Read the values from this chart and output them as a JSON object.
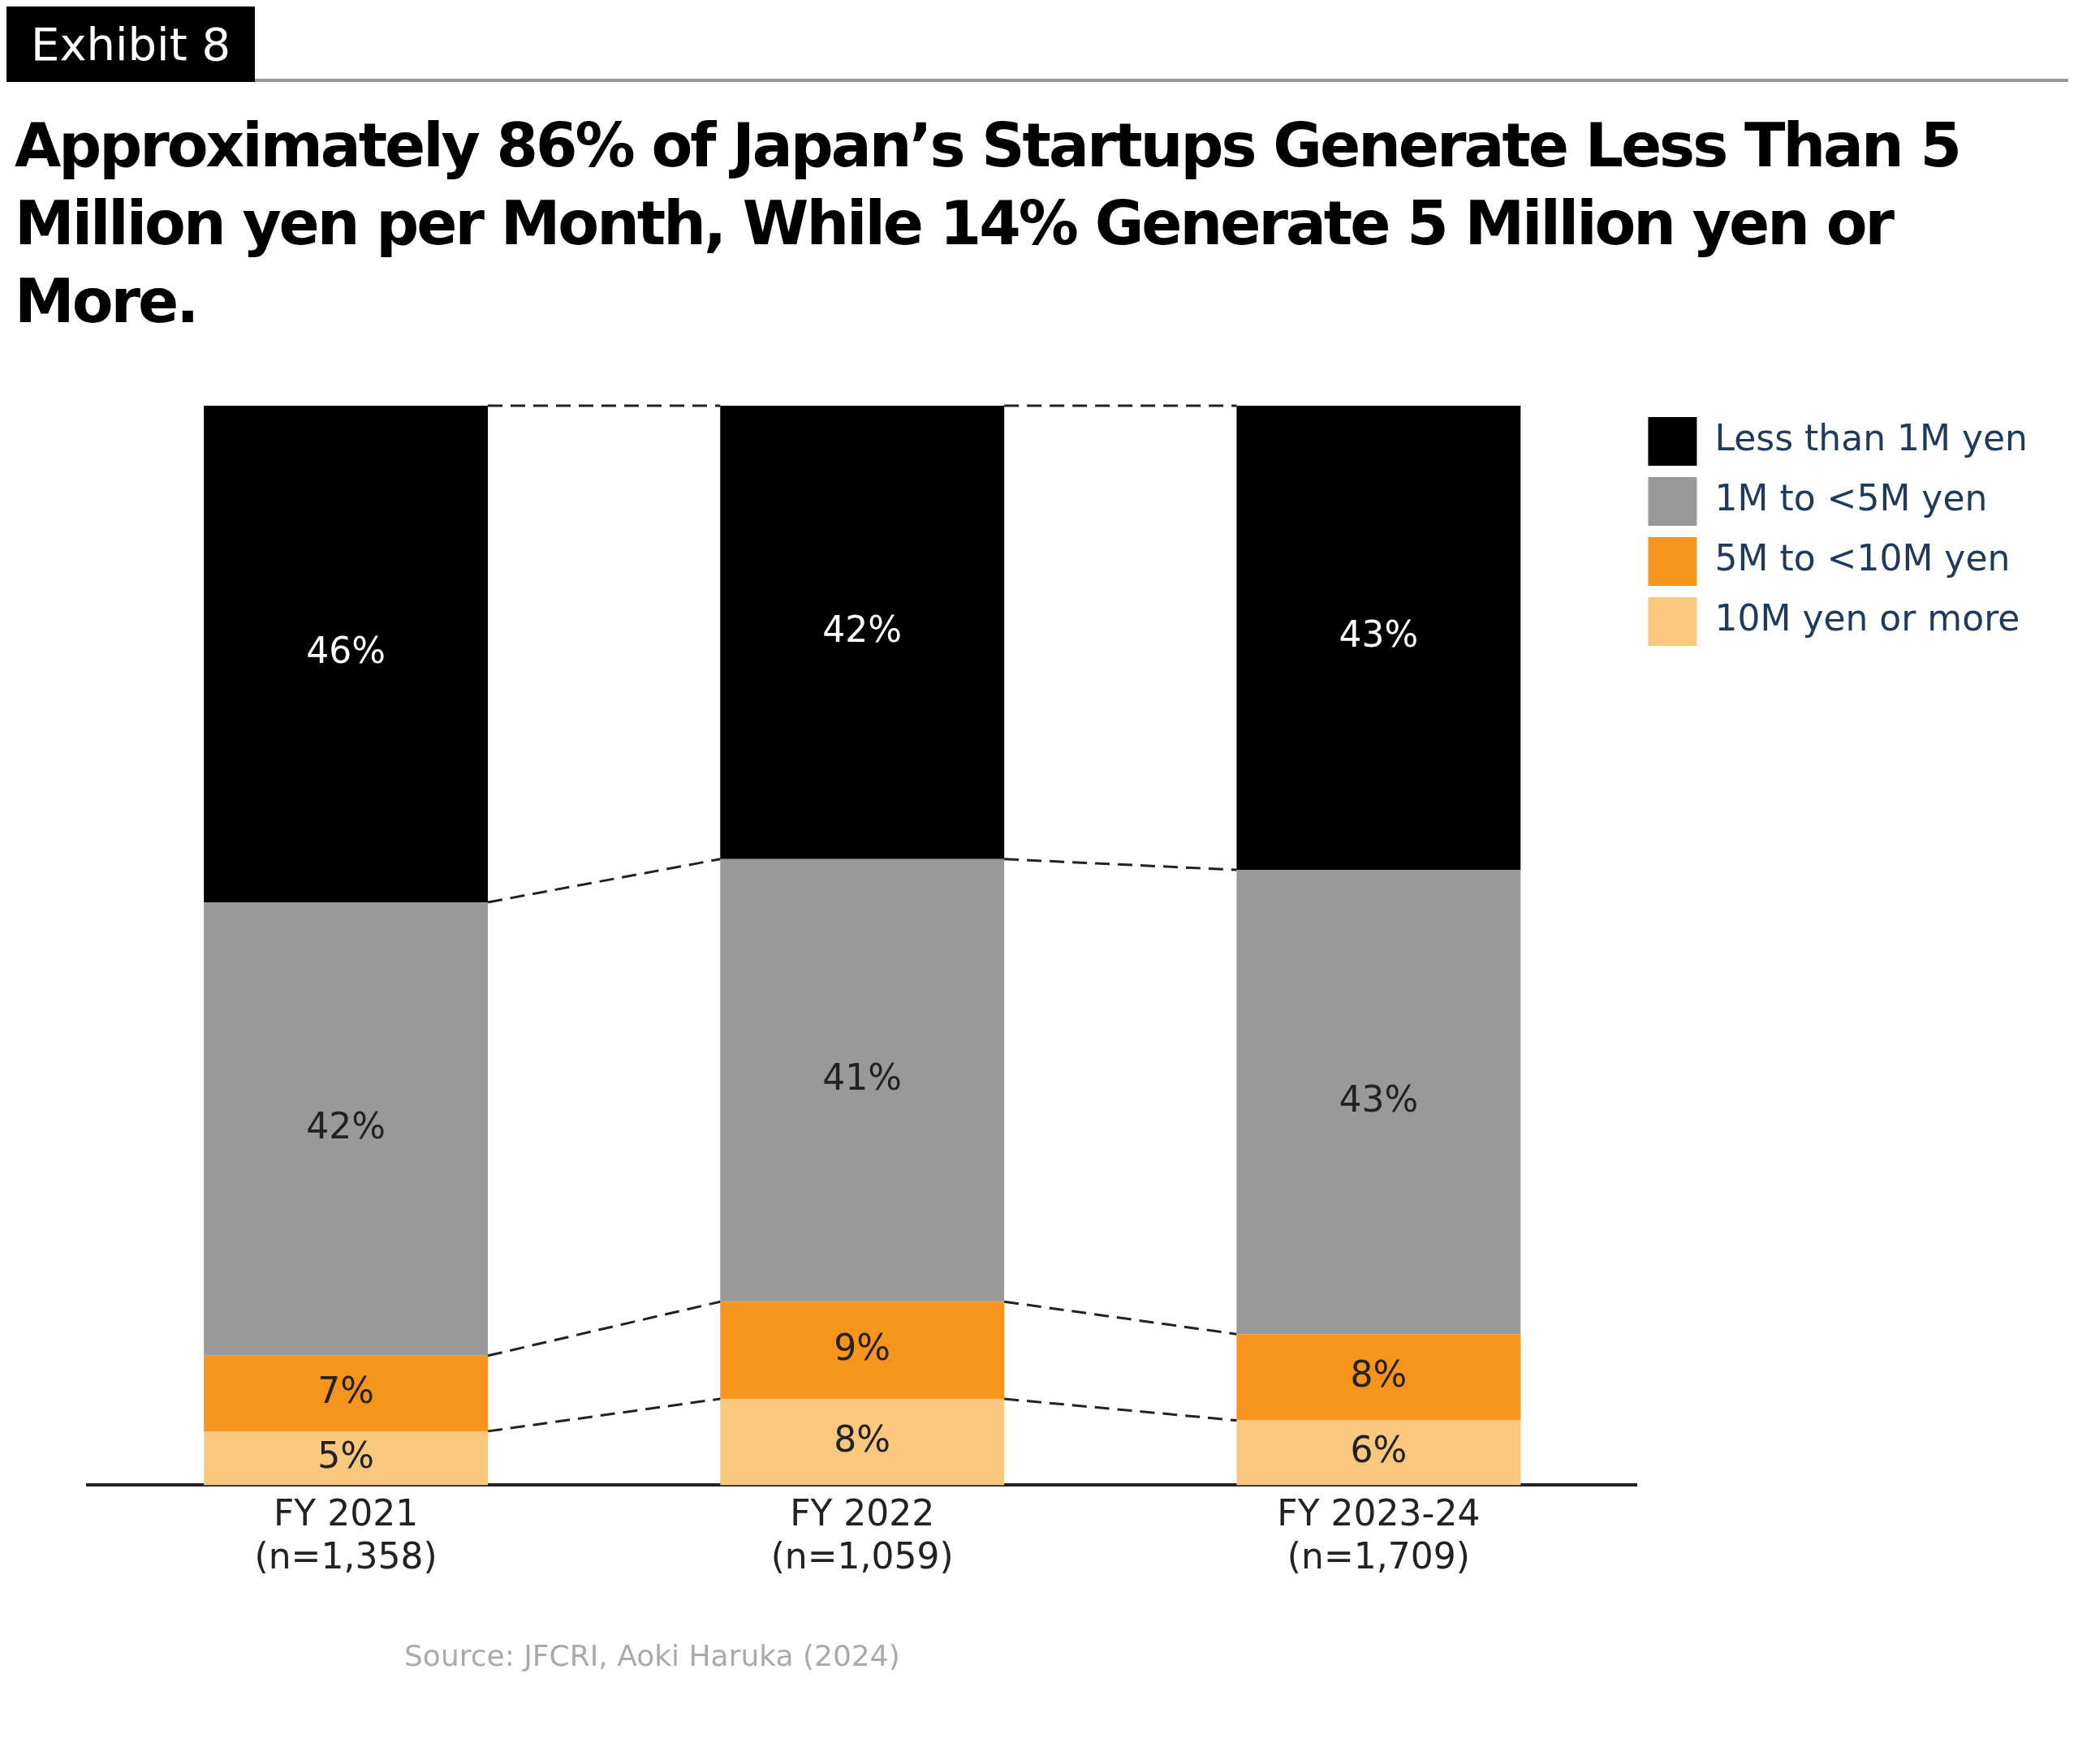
{
  "chart_data": {
    "type": "bar",
    "title": "Approximately 86% of Japan’s Startups Generate Less Than 5 Million yen per Month, While 14% Generate 5 Million yen or More.",
    "categories": [
      "FY 2021 (n=1,358)",
      "FY 2022 (n=1,059)",
      "FY 2023-24 (n=1,709)"
    ],
    "stacked": true,
    "legend": "top right",
    "series": [
      {
        "name": "10M yen or more",
        "color": "#f9c77d",
        "values": [
          5,
          8,
          6
        ],
        "value_labels": [
          "5%",
          "8%",
          "6%"
        ]
      },
      {
        "name": "5M to <10M yen",
        "color": "#f7941d",
        "values": [
          7,
          9,
          8
        ],
        "value_labels": [
          "7%",
          "9%",
          "8%"
        ]
      },
      {
        "name": "1M to <5M yen",
        "color": "#999999",
        "values": [
          42,
          41,
          43
        ],
        "value_labels": [
          "42%",
          "41%",
          "43%"
        ]
      },
      {
        "name": "Less than 1M yen",
        "color": "#000000",
        "values": [
          46,
          42,
          43
        ],
        "value_labels": [
          "46%",
          "42%",
          "43%"
        ]
      }
    ],
    "annotations": [
      "Exhibit 8",
      "Source: JFCRI, Aoki Haruka (2024)"
    ]
  }
}
